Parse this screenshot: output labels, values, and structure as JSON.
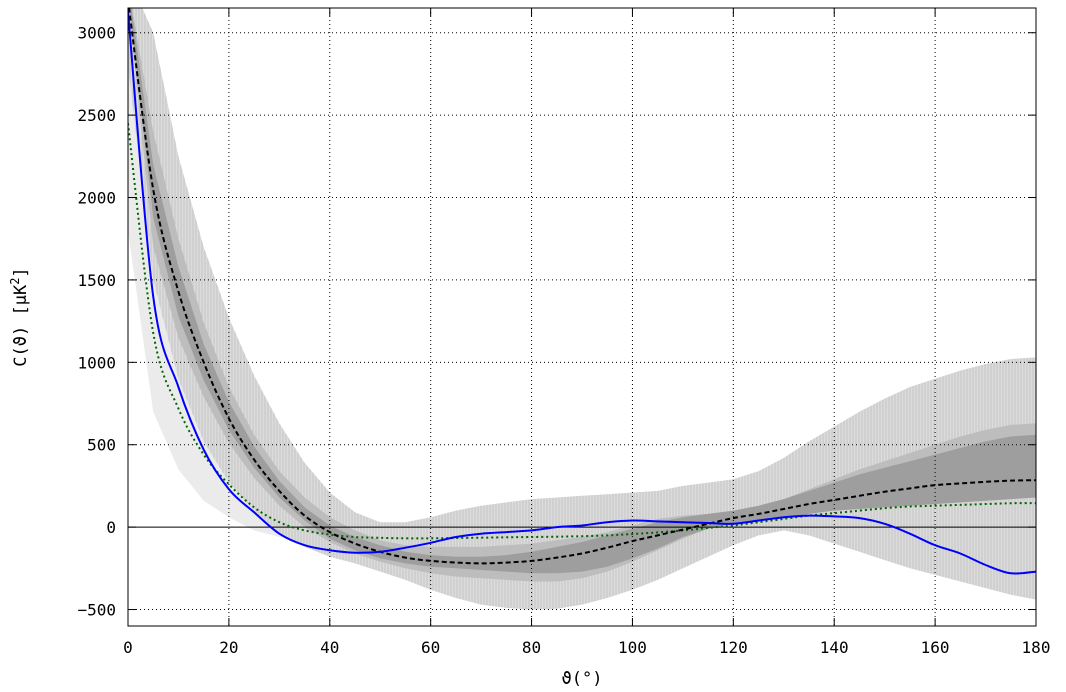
{
  "chart_data": {
    "type": "line",
    "title": "",
    "xlabel": "ϑ(°)",
    "ylabel": "C(ϑ)   [μK²]",
    "ylabel_parts": {
      "main": "C(ϑ)   [μK",
      "sup": "2",
      "tail": "]"
    },
    "xlim": [
      0,
      180
    ],
    "ylim": [
      -600,
      3150
    ],
    "grid": true,
    "legend": "none",
    "x_ticks": [
      0,
      20,
      40,
      60,
      80,
      100,
      120,
      140,
      160,
      180
    ],
    "y_ticks": [
      -500,
      0,
      500,
      1000,
      1500,
      2000,
      2500,
      3000
    ],
    "x_tick_labels": [
      "0",
      "20",
      "40",
      "60",
      "80",
      "100",
      "120",
      "140",
      "160",
      "180"
    ],
    "y_tick_labels": [
      "−500",
      "0",
      "500",
      "1000",
      "1500",
      "2000",
      "2500",
      "3000"
    ],
    "x": [
      0,
      5,
      10,
      15,
      20,
      25,
      30,
      35,
      40,
      45,
      50,
      55,
      60,
      65,
      70,
      75,
      80,
      85,
      90,
      95,
      100,
      105,
      110,
      115,
      120,
      125,
      130,
      135,
      140,
      145,
      150,
      155,
      160,
      165,
      170,
      175,
      180
    ],
    "series": [
      {
        "style": "solid",
        "color": "#0000ff",
        "values": [
          3130,
          1400,
          850,
          470,
          230,
          90,
          -40,
          -110,
          -140,
          -155,
          -150,
          -125,
          -95,
          -60,
          -40,
          -30,
          -20,
          0,
          10,
          30,
          40,
          35,
          30,
          25,
          20,
          40,
          60,
          70,
          65,
          55,
          20,
          -40,
          -110,
          -160,
          -230,
          -280,
          -270
        ]
      },
      {
        "style": "dashed",
        "color": "#000000",
        "values": [
          3200,
          2050,
          1430,
          1000,
          660,
          410,
          220,
          70,
          -30,
          -100,
          -150,
          -185,
          -205,
          -215,
          -220,
          -215,
          -205,
          -185,
          -160,
          -125,
          -85,
          -50,
          -15,
          20,
          55,
          80,
          110,
          140,
          165,
          190,
          215,
          235,
          255,
          265,
          275,
          282,
          285
        ]
      },
      {
        "style": "dotted",
        "color": "#006400",
        "values": [
          2450,
          1180,
          720,
          440,
          260,
          120,
          30,
          -20,
          -45,
          -60,
          -65,
          -68,
          -68,
          -66,
          -64,
          -62,
          -60,
          -58,
          -55,
          -50,
          -42,
          -32,
          -20,
          -5,
          10,
          30,
          50,
          70,
          85,
          100,
          115,
          125,
          130,
          135,
          140,
          145,
          145
        ]
      }
    ],
    "bands": [
      {
        "color": "#ebebeb",
        "hatched": false,
        "lower": [
          1800,
          700,
          350,
          160,
          60,
          -20,
          -60,
          -70,
          -60,
          -50,
          -40,
          -40,
          -50,
          -60,
          -70,
          -80,
          -90,
          -100,
          -100,
          -90,
          -80,
          -60,
          -30,
          0,
          20,
          40,
          60,
          70,
          70,
          70,
          70,
          60,
          50,
          40,
          30,
          10,
          0
        ],
        "upper": [
          3300,
          2300,
          1600,
          1100,
          750,
          470,
          250,
          100,
          20,
          -20,
          -40,
          -40,
          -30,
          -20,
          -10,
          0,
          10,
          20,
          40,
          60,
          80,
          100,
          120,
          140,
          160,
          180,
          200,
          240,
          280,
          300,
          330,
          350,
          370,
          390,
          400,
          410,
          420
        ]
      },
      {
        "color": "#d6d6d6",
        "hatched": true,
        "lower": [
          2800,
          1500,
          900,
          520,
          270,
          100,
          -40,
          -120,
          -180,
          -220,
          -270,
          -320,
          -380,
          -430,
          -470,
          -490,
          -500,
          -495,
          -470,
          -430,
          -380,
          -320,
          -250,
          -180,
          -110,
          -50,
          -20,
          -50,
          -100,
          -150,
          -200,
          -250,
          -290,
          -330,
          -370,
          -410,
          -440
        ],
        "upper": [
          3350,
          3000,
          2250,
          1700,
          1270,
          920,
          630,
          390,
          210,
          90,
          30,
          30,
          60,
          100,
          130,
          150,
          170,
          180,
          190,
          200,
          210,
          220,
          250,
          270,
          290,
          340,
          420,
          520,
          610,
          700,
          780,
          850,
          900,
          950,
          990,
          1020,
          1030
        ]
      },
      {
        "color": "#bdbdbd",
        "hatched": false,
        "lower": [
          3200,
          1700,
          1150,
          790,
          510,
          300,
          130,
          0,
          -90,
          -160,
          -210,
          -250,
          -280,
          -300,
          -310,
          -320,
          -330,
          -330,
          -310,
          -270,
          -210,
          -140,
          -70,
          -10,
          30,
          50,
          70,
          90,
          100,
          110,
          120,
          130,
          140,
          150,
          160,
          170,
          180
        ],
        "upper": [
          3300,
          2400,
          1750,
          1240,
          850,
          560,
          340,
          180,
          60,
          -20,
          -80,
          -110,
          -120,
          -120,
          -120,
          -110,
          -100,
          -80,
          -60,
          -30,
          10,
          50,
          70,
          80,
          90,
          120,
          170,
          230,
          290,
          350,
          400,
          450,
          500,
          550,
          590,
          620,
          630
        ]
      },
      {
        "color": "#9e9e9e",
        "hatched": false,
        "lower": [
          3250,
          1880,
          1280,
          890,
          590,
          360,
          180,
          40,
          -70,
          -140,
          -190,
          -220,
          -240,
          -250,
          -260,
          -270,
          -280,
          -280,
          -270,
          -240,
          -190,
          -130,
          -60,
          -10,
          20,
          40,
          60,
          80,
          100,
          110,
          120,
          130,
          140,
          150,
          160,
          170,
          180
        ],
        "upper": [
          3300,
          2200,
          1580,
          1110,
          760,
          490,
          280,
          120,
          10,
          -60,
          -110,
          -150,
          -170,
          -180,
          -180,
          -170,
          -150,
          -120,
          -90,
          -50,
          -10,
          30,
          60,
          80,
          100,
          130,
          170,
          220,
          270,
          320,
          360,
          400,
          440,
          480,
          520,
          550,
          560
        ]
      }
    ]
  }
}
